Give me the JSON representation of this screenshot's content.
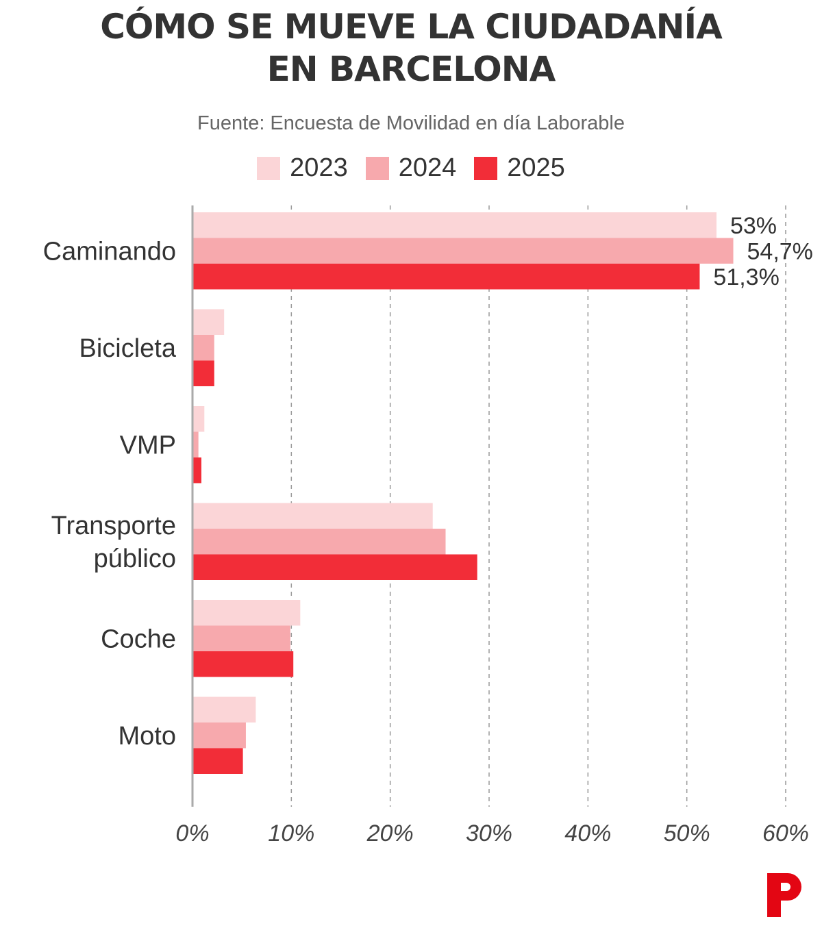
{
  "title_line1": "CÓMO SE MUEVE LA CIUDADANÍA",
  "title_line2": "EN BARCELONA",
  "subtitle": "Fuente: Encuesta de Movilidad en día Laborable",
  "chart_data": {
    "type": "bar",
    "orientation": "horizontal",
    "title": "CÓMO SE MUEVE LA CIUDADANÍA EN BARCELONA",
    "categories": [
      "Caminando",
      "Bicicleta",
      "VMP",
      "Transporte público",
      "Coche",
      "Moto"
    ],
    "category_labels": [
      [
        "Caminando"
      ],
      [
        "Bicicleta"
      ],
      [
        "VMP"
      ],
      [
        "Transporte",
        "público"
      ],
      [
        "Coche"
      ],
      [
        "Moto"
      ]
    ],
    "series": [
      {
        "name": "2023",
        "color": "#fbd5d7",
        "values": [
          53,
          3.2,
          1.2,
          24.3,
          10.9,
          6.4
        ]
      },
      {
        "name": "2024",
        "color": "#f7a9ad",
        "values": [
          54.7,
          2.2,
          0.6,
          25.6,
          9.9,
          5.4
        ]
      },
      {
        "name": "2025",
        "color": "#f22d38",
        "values": [
          51.3,
          2.2,
          0.9,
          28.8,
          10.2,
          5.1
        ]
      }
    ],
    "data_labels": {
      "Caminando": [
        "53%",
        "54,7%",
        "51,3%"
      ]
    },
    "xlim": [
      0,
      60
    ],
    "xticks": [
      0,
      10,
      20,
      30,
      40,
      50,
      60
    ],
    "xtick_labels": [
      "0%",
      "10%",
      "20%",
      "30%",
      "40%",
      "50%",
      "60%"
    ],
    "grid": "vertical dashed",
    "legend_placement": "top"
  },
  "logo_letter": "P",
  "logo_color": "#e30613"
}
